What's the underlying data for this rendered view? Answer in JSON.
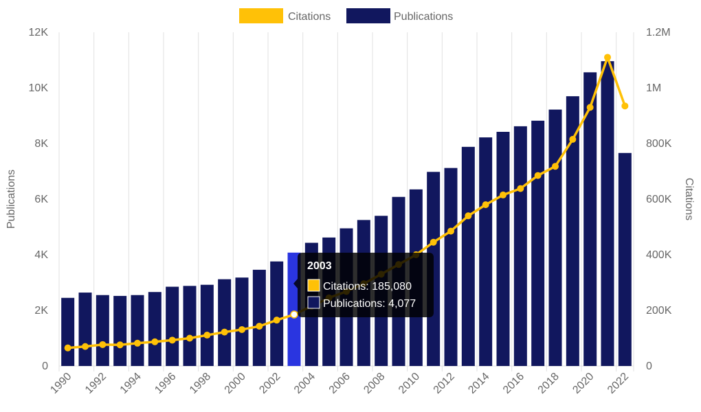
{
  "chart_data": {
    "type": "bar",
    "legend": {
      "position": "top",
      "items": [
        {
          "label": "Citations",
          "color": "#FFC107"
        },
        {
          "label": "Publications",
          "color": "#11175E"
        }
      ]
    },
    "categories": [
      "1990",
      "1991",
      "1992",
      "1993",
      "1994",
      "1995",
      "1996",
      "1997",
      "1998",
      "1999",
      "2000",
      "2001",
      "2002",
      "2003",
      "2004",
      "2005",
      "2006",
      "2007",
      "2008",
      "2009",
      "2010",
      "2011",
      "2012",
      "2013",
      "2014",
      "2015",
      "2016",
      "2017",
      "2018",
      "2019",
      "2020",
      "2021",
      "2022"
    ],
    "x_tick_labels": [
      "1990",
      "1992",
      "1994",
      "1996",
      "1998",
      "2000",
      "2002",
      "2004",
      "2006",
      "2008",
      "2010",
      "2012",
      "2014",
      "2016",
      "2018",
      "2020",
      "2022"
    ],
    "series": [
      {
        "name": "Publications",
        "type": "bar",
        "axis": "left",
        "color": "#11175E",
        "highlight_color": "#2A35E0",
        "values": [
          2450,
          2640,
          2550,
          2520,
          2550,
          2660,
          2850,
          2880,
          2920,
          3120,
          3180,
          3460,
          3760,
          4077,
          4430,
          4620,
          4950,
          5250,
          5400,
          6080,
          6350,
          6980,
          7120,
          7880,
          8220,
          8420,
          8620,
          8820,
          9220,
          9700,
          10560,
          10960,
          7660
        ]
      },
      {
        "name": "Citations",
        "type": "line",
        "axis": "right",
        "color": "#FFC107",
        "values": [
          65000,
          70000,
          77000,
          76000,
          82000,
          87000,
          93000,
          100000,
          111000,
          122000,
          131000,
          143000,
          165000,
          185080,
          215000,
          245000,
          268000,
          296000,
          330000,
          365000,
          400000,
          445000,
          485000,
          540000,
          580000,
          615000,
          638000,
          685000,
          718000,
          815000,
          930000,
          1110000,
          935000
        ]
      }
    ],
    "y_left": {
      "title": "Publications",
      "min": 0,
      "max": 12000,
      "ticks": [
        0,
        2000,
        4000,
        6000,
        8000,
        10000,
        12000
      ],
      "tick_labels": [
        "0",
        "2K",
        "4K",
        "6K",
        "8K",
        "10K",
        "12K"
      ]
    },
    "y_right": {
      "title": "Citations",
      "min": 0,
      "max": 1200000,
      "ticks": [
        0,
        200000,
        400000,
        600000,
        800000,
        1000000,
        1200000
      ],
      "tick_labels": [
        "0",
        "200K",
        "400K",
        "600K",
        "800K",
        "1M",
        "1.2M"
      ]
    },
    "grid": {
      "vertical": true,
      "horizontal": false
    },
    "active_index": 13,
    "tooltip": {
      "title": "2003",
      "lines": [
        {
          "label": "Citations: 185,080",
          "color": "#FFC107"
        },
        {
          "label": "Publications: 4,077",
          "color": "#11175E"
        }
      ]
    }
  }
}
